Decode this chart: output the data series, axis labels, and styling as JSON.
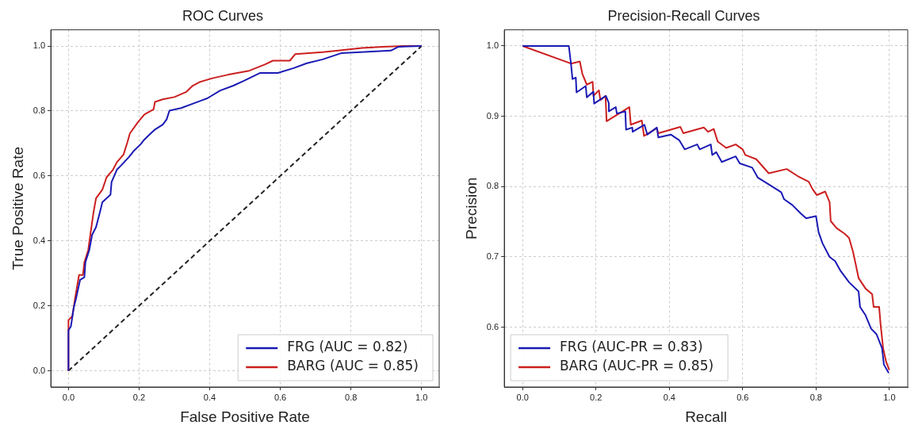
{
  "chart_data": [
    {
      "type": "line",
      "title": "ROC Curves",
      "xlabel": "False Positive Rate",
      "ylabel": "True Positive Rate",
      "xlim": [
        -0.05,
        1.05
      ],
      "ylim": [
        -0.05,
        1.05
      ],
      "xticks": [
        {
          "value": 0,
          "label": "0.0"
        },
        {
          "value": 0.2,
          "label": "0.2"
        },
        {
          "value": 0.4,
          "label": "0.4"
        },
        {
          "value": 0.6,
          "label": "0.6"
        },
        {
          "value": 0.8,
          "label": "0.8"
        },
        {
          "value": 1,
          "label": "1.0"
        }
      ],
      "yticks": [
        {
          "value": 0,
          "label": "0.0"
        },
        {
          "value": 0.2,
          "label": "0.2"
        },
        {
          "value": 0.4,
          "label": "0.4"
        },
        {
          "value": 0.6,
          "label": "0.6"
        },
        {
          "value": 0.8,
          "label": "0.8"
        },
        {
          "value": 1,
          "label": "1.0"
        }
      ],
      "grid": true,
      "legend": "bottom right",
      "marker": "none",
      "line_style": "solid",
      "series": [
        {
          "name": "FRG (AUC = 0.82)",
          "color": "#1a1ab4",
          "x": [
            0,
            0,
            0.007,
            0.015,
            0.022,
            0.033,
            0.045,
            0.048,
            0.059,
            0.067,
            0.078,
            0.089,
            0.096,
            0.108,
            0.119,
            0.122,
            0.137,
            0.148,
            0.171,
            0.185,
            0.204,
            0.215,
            0.23,
            0.245,
            0.267,
            0.278,
            0.286,
            0.319,
            0.356,
            0.393,
            0.43,
            0.467,
            0.497,
            0.542,
            0.593,
            0.638,
            0.675,
            0.72,
            0.772,
            0.838,
            0.913,
            0.935,
            1
          ],
          "values": [
            0,
            0.125,
            0.137,
            0.195,
            0.225,
            0.28,
            0.288,
            0.334,
            0.372,
            0.419,
            0.442,
            0.488,
            0.519,
            0.531,
            0.542,
            0.581,
            0.619,
            0.631,
            0.658,
            0.677,
            0.697,
            0.712,
            0.728,
            0.743,
            0.758,
            0.774,
            0.801,
            0.809,
            0.824,
            0.839,
            0.863,
            0.878,
            0.893,
            0.917,
            0.917,
            0.932,
            0.947,
            0.959,
            0.978,
            0.982,
            0.986,
            0.998,
            1
          ]
        },
        {
          "name": "BARG (AUC = 0.85)",
          "color": "#cc1f1f",
          "x": [
            0,
            0,
            0.011,
            0.019,
            0.03,
            0.041,
            0.045,
            0.056,
            0.063,
            0.071,
            0.078,
            0.096,
            0.108,
            0.126,
            0.137,
            0.156,
            0.167,
            0.174,
            0.197,
            0.215,
            0.241,
            0.245,
            0.267,
            0.3,
            0.334,
            0.352,
            0.371,
            0.408,
            0.453,
            0.512,
            0.556,
            0.579,
            0.627,
            0.642,
            0.72,
            0.764,
            0.831,
            0.89,
            0.95,
            1
          ],
          "values": [
            0,
            0.156,
            0.168,
            0.225,
            0.295,
            0.295,
            0.334,
            0.372,
            0.427,
            0.488,
            0.531,
            0.558,
            0.596,
            0.619,
            0.642,
            0.666,
            0.704,
            0.731,
            0.766,
            0.789,
            0.805,
            0.828,
            0.836,
            0.843,
            0.859,
            0.878,
            0.889,
            0.901,
            0.912,
            0.924,
            0.943,
            0.955,
            0.955,
            0.975,
            0.981,
            0.986,
            0.994,
            0.998,
            1,
            1
          ]
        },
        {
          "color": "#222222",
          "line_style": "dashed",
          "x": [
            0,
            1
          ],
          "values": [
            0,
            1
          ]
        }
      ]
    },
    {
      "type": "line",
      "title": "Precision-Recall Curves",
      "xlabel": "Recall",
      "ylabel": "Precision",
      "xlim": [
        -0.05,
        1.05
      ],
      "ylim": [
        0.515,
        1.023
      ],
      "xticks": [
        {
          "value": 0,
          "label": "0.0"
        },
        {
          "value": 0.2,
          "label": "0.2"
        },
        {
          "value": 0.4,
          "label": "0.4"
        },
        {
          "value": 0.6,
          "label": "0.6"
        },
        {
          "value": 0.8,
          "label": "0.8"
        },
        {
          "value": 1,
          "label": "1.0"
        }
      ],
      "yticks": [
        0.6,
        0.7,
        0.8,
        0.9,
        {
          "value": 1,
          "label": "1.0"
        }
      ],
      "grid": true,
      "legend": "bottom left",
      "marker": "none",
      "line_style": "solid",
      "series": [
        {
          "name": "FRG (AUC-PR = 0.83)",
          "color": "#1a1ab4",
          "x": [
            0,
            0.126,
            0.132,
            0.136,
            0.145,
            0.147,
            0.172,
            0.175,
            0.193,
            0.195,
            0.227,
            0.235,
            0.235,
            0.254,
            0.257,
            0.28,
            0.282,
            0.299,
            0.3,
            0.332,
            0.34,
            0.366,
            0.37,
            0.404,
            0.427,
            0.442,
            0.476,
            0.483,
            0.513,
            0.517,
            0.528,
            0.543,
            0.581,
            0.592,
            0.626,
            0.641,
            0.675,
            0.705,
            0.713,
            0.735,
            0.758,
            0.773,
            0.8,
            0.807,
            0.818,
            0.837,
            0.852,
            0.867,
            0.89,
            0.916,
            0.92,
            0.935,
            0.95,
            0.965,
            0.98,
            0.985,
            0.998
          ],
          "values": [
            1,
            1,
            0.974,
            0.953,
            0.955,
            0.934,
            0.943,
            0.927,
            0.935,
            0.918,
            0.929,
            0.919,
            0.907,
            0.913,
            0.904,
            0.907,
            0.881,
            0.884,
            0.878,
            0.888,
            0.874,
            0.884,
            0.87,
            0.874,
            0.866,
            0.853,
            0.86,
            0.853,
            0.86,
            0.845,
            0.849,
            0.835,
            0.843,
            0.833,
            0.827,
            0.813,
            0.802,
            0.792,
            0.782,
            0.774,
            0.762,
            0.755,
            0.758,
            0.735,
            0.719,
            0.7,
            0.694,
            0.68,
            0.664,
            0.651,
            0.629,
            0.617,
            0.598,
            0.59,
            0.57,
            0.547,
            0.535
          ]
        },
        {
          "name": "BARG (AUC-PR = 0.85)",
          "color": "#cc1f1f",
          "x": [
            0,
            0.132,
            0.156,
            0.163,
            0.175,
            0.191,
            0.193,
            0.208,
            0.212,
            0.226,
            0.229,
            0.291,
            0.295,
            0.325,
            0.331,
            0.366,
            0.37,
            0.43,
            0.438,
            0.494,
            0.506,
            0.521,
            0.532,
            0.555,
            0.581,
            0.6,
            0.607,
            0.637,
            0.671,
            0.72,
            0.75,
            0.78,
            0.791,
            0.802,
            0.825,
            0.837,
            0.84,
            0.856,
            0.878,
            0.89,
            0.901,
            0.908,
            0.916,
            0.935,
            0.953,
            0.957,
            0.972,
            0.976,
            0.983,
            0.991,
            1
          ],
          "values": [
            1,
            0.975,
            0.978,
            0.96,
            0.945,
            0.949,
            0.929,
            0.937,
            0.923,
            0.929,
            0.893,
            0.913,
            0.888,
            0.894,
            0.872,
            0.883,
            0.876,
            0.885,
            0.876,
            0.884,
            0.878,
            0.882,
            0.864,
            0.855,
            0.86,
            0.853,
            0.845,
            0.839,
            0.819,
            0.825,
            0.815,
            0.807,
            0.796,
            0.788,
            0.793,
            0.778,
            0.751,
            0.741,
            0.733,
            0.727,
            0.707,
            0.69,
            0.67,
            0.655,
            0.647,
            0.629,
            0.629,
            0.604,
            0.57,
            0.551,
            0.539
          ]
        }
      ]
    }
  ]
}
